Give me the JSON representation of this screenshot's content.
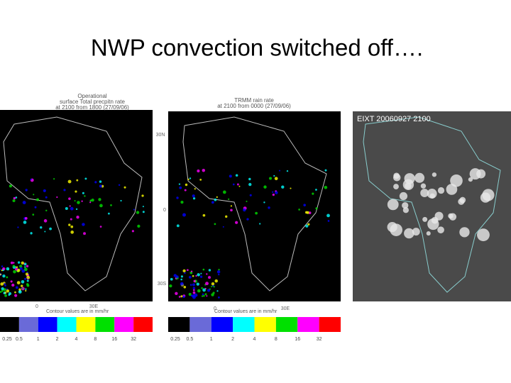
{
  "title": "NWP convection switched off….",
  "panels": [
    {
      "title_lines": [
        "Operational",
        "surface Total precpitn rate",
        "at 2100 from 1800 (27/09/06)"
      ],
      "axis_labels": [
        "0",
        "30E"
      ],
      "colorbar_caption": "Contour values are in mm/hr",
      "colorbar_labels": [
        "0.25",
        "0.5",
        "1",
        "2",
        "4",
        "8",
        "16",
        "32"
      ]
    },
    {
      "title_lines": [
        "TRMM rain rate",
        "at 2100 from 0000 (27/09/06)"
      ],
      "axis_labels": [
        "30N",
        "0",
        "30S",
        "0",
        "30E"
      ],
      "colorbar_caption": "Contour values are in mm/hr",
      "colorbar_labels": [
        "0.25",
        "0.5",
        "1",
        "2",
        "4",
        "8",
        "16",
        "32"
      ]
    }
  ],
  "satellite": {
    "label": "EIXT 20060927 2100"
  }
}
